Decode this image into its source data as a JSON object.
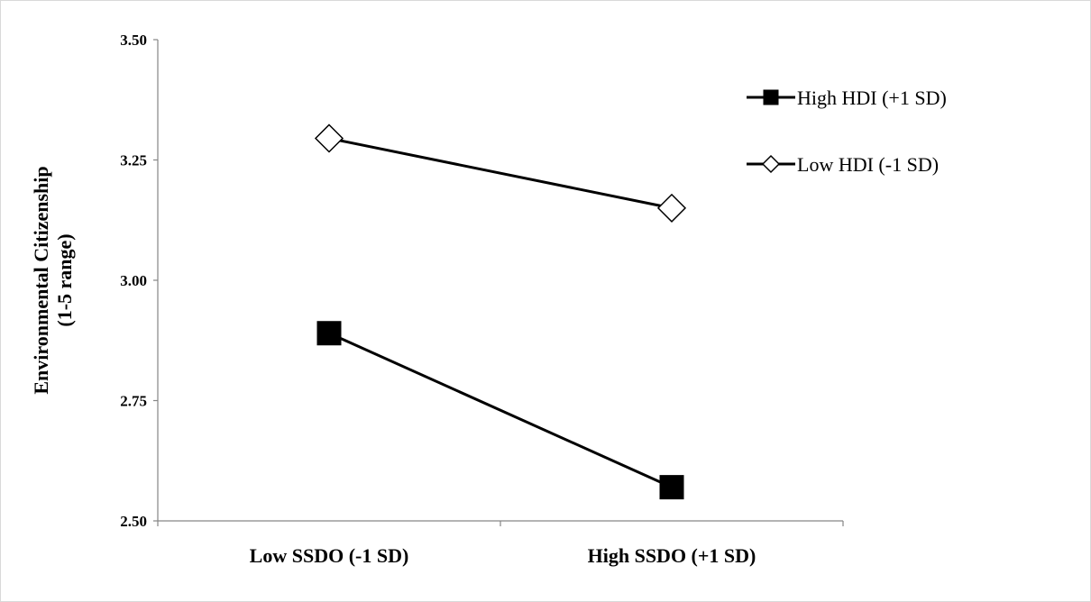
{
  "chart_data": {
    "type": "line",
    "title": "",
    "xlabel": "",
    "ylabel_line1": "Environmental Citizenship",
    "ylabel_line2": "(1-5 range)",
    "categories": [
      "Low SSDO (-1 SD)",
      "High SSDO (+1 SD)"
    ],
    "ylim": [
      2.5,
      3.5
    ],
    "yticks": [
      "2.50",
      "2.75",
      "3.00",
      "3.25",
      "3.50"
    ],
    "grid": false,
    "legend_position": "top-right",
    "series": [
      {
        "name": "High HDI (+1 SD)",
        "values": [
          2.89,
          2.57
        ],
        "marker": "filled-square",
        "color": "#000000"
      },
      {
        "name": "Low HDI (-1 SD)",
        "values": [
          3.295,
          3.15
        ],
        "marker": "open-diamond",
        "color": "#000000"
      }
    ]
  }
}
